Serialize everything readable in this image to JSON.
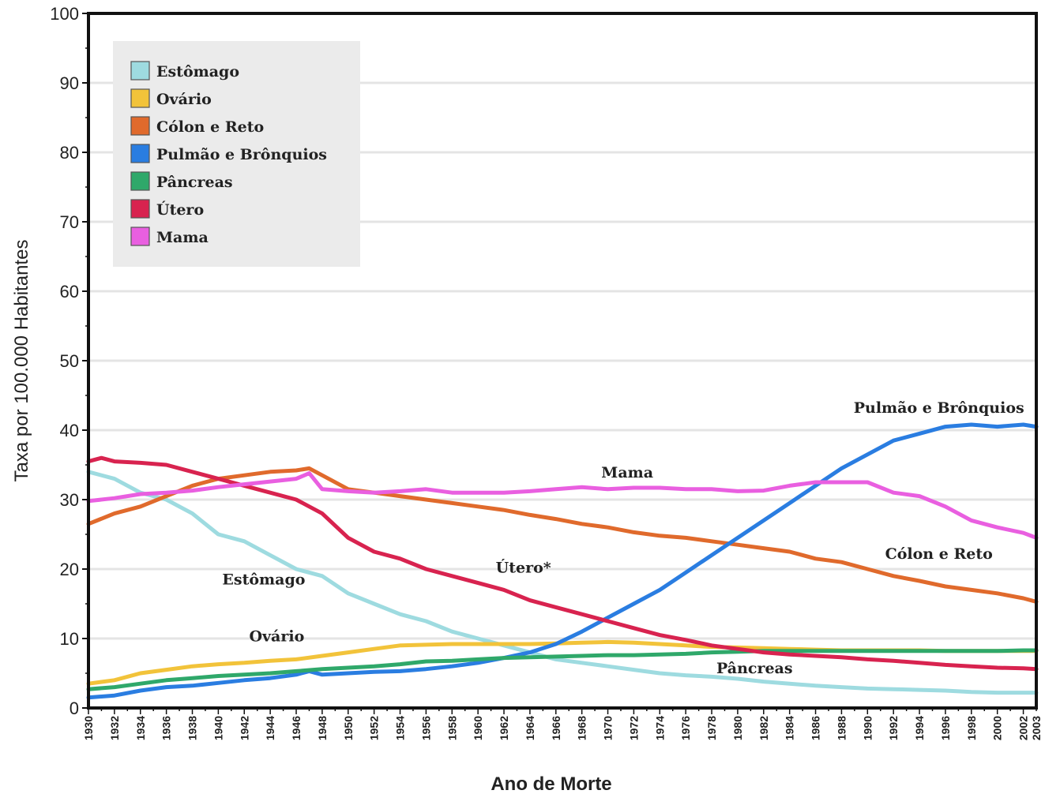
{
  "chart_data": {
    "type": "line",
    "title": "",
    "xlabel": "Ano de Morte",
    "ylabel": "Taxa por 100.000 Habitantes",
    "xlim": [
      1930,
      2003
    ],
    "ylim": [
      0,
      100
    ],
    "yticks": [
      0,
      10,
      20,
      30,
      40,
      50,
      60,
      70,
      80,
      90,
      100
    ],
    "xticks": [
      1930,
      1932,
      1934,
      1936,
      1938,
      1940,
      1942,
      1944,
      1946,
      1948,
      1950,
      1952,
      1954,
      1956,
      1958,
      1960,
      1962,
      1964,
      1966,
      1968,
      1970,
      1972,
      1974,
      1976,
      1978,
      1980,
      1982,
      1984,
      1986,
      1988,
      1990,
      1992,
      1994,
      1996,
      1998,
      2000,
      2002,
      2003
    ],
    "grid": "horizontal",
    "legend_position": "top-left",
    "series": [
      {
        "name": "Estômago",
        "color": "#9edbe0",
        "x": [
          1930,
          1932,
          1934,
          1936,
          1938,
          1940,
          1942,
          1944,
          1946,
          1948,
          1950,
          1952,
          1954,
          1956,
          1958,
          1960,
          1962,
          1964,
          1966,
          1968,
          1970,
          1972,
          1974,
          1976,
          1978,
          1980,
          1982,
          1984,
          1986,
          1988,
          1990,
          1992,
          1994,
          1996,
          1998,
          2000,
          2002,
          2003
        ],
        "y": [
          34,
          33,
          31,
          30,
          28,
          25,
          24,
          22,
          20,
          19,
          16.5,
          15,
          13.5,
          12.5,
          11,
          10,
          9,
          8,
          7,
          6.5,
          6,
          5.5,
          5,
          4.7,
          4.5,
          4.2,
          3.8,
          3.5,
          3.2,
          3,
          2.8,
          2.7,
          2.6,
          2.5,
          2.3,
          2.2,
          2.2,
          2.2
        ]
      },
      {
        "name": "Ovário",
        "color": "#f2c33a",
        "x": [
          1930,
          1932,
          1934,
          1936,
          1938,
          1940,
          1942,
          1944,
          1946,
          1948,
          1950,
          1952,
          1954,
          1956,
          1958,
          1960,
          1962,
          1964,
          1966,
          1968,
          1970,
          1972,
          1974,
          1976,
          1978,
          1980,
          1982,
          1984,
          1986,
          1988,
          1990,
          1992,
          1994,
          1996,
          1998,
          2000,
          2002,
          2003
        ],
        "y": [
          3.5,
          4,
          5,
          5.5,
          6,
          6.3,
          6.5,
          6.8,
          7,
          7.5,
          8,
          8.5,
          9,
          9.1,
          9.2,
          9.2,
          9.2,
          9.2,
          9.3,
          9.4,
          9.5,
          9.4,
          9.2,
          9,
          8.8,
          8.7,
          8.6,
          8.5,
          8.4,
          8.3,
          8.3,
          8.3,
          8.3,
          8.2,
          8.2,
          8.2,
          8.2,
          8.2
        ]
      },
      {
        "name": "Cólon e Reto",
        "color": "#e06a2c",
        "x": [
          1930,
          1932,
          1934,
          1936,
          1938,
          1940,
          1942,
          1944,
          1946,
          1947,
          1948,
          1950,
          1952,
          1954,
          1956,
          1958,
          1960,
          1962,
          1964,
          1966,
          1968,
          1970,
          1972,
          1974,
          1976,
          1978,
          1980,
          1982,
          1984,
          1986,
          1988,
          1990,
          1992,
          1994,
          1996,
          1998,
          2000,
          2002,
          2003
        ],
        "y": [
          26.5,
          28,
          29,
          30.5,
          32,
          33,
          33.5,
          34,
          34.2,
          34.5,
          33.5,
          31.5,
          31,
          30.5,
          30,
          29.5,
          29,
          28.5,
          27.8,
          27.2,
          26.5,
          26,
          25.3,
          24.8,
          24.5,
          24,
          23.5,
          23,
          22.5,
          21.5,
          21,
          20,
          19,
          18.3,
          17.5,
          17,
          16.5,
          15.8,
          15.3
        ]
      },
      {
        "name": "Pulmão e Brônquios",
        "color": "#2a7de1",
        "x": [
          1930,
          1932,
          1934,
          1936,
          1938,
          1940,
          1942,
          1944,
          1946,
          1947,
          1948,
          1950,
          1952,
          1954,
          1956,
          1958,
          1960,
          1962,
          1964,
          1966,
          1968,
          1970,
          1972,
          1974,
          1976,
          1978,
          1980,
          1982,
          1984,
          1986,
          1988,
          1990,
          1992,
          1994,
          1996,
          1998,
          2000,
          2002,
          2003
        ],
        "y": [
          1.5,
          1.8,
          2.5,
          3,
          3.2,
          3.6,
          4,
          4.3,
          4.8,
          5.3,
          4.8,
          5,
          5.2,
          5.3,
          5.6,
          6,
          6.5,
          7.2,
          8,
          9.2,
          11,
          13,
          15,
          17,
          19.5,
          22,
          24.5,
          27,
          29.5,
          32,
          34.5,
          36.5,
          38.5,
          39.5,
          40.5,
          40.8,
          40.5,
          40.8,
          40.5
        ]
      },
      {
        "name": "Pâncreas",
        "color": "#2fa86a",
        "x": [
          1930,
          1932,
          1934,
          1936,
          1938,
          1940,
          1942,
          1944,
          1946,
          1948,
          1950,
          1952,
          1954,
          1956,
          1958,
          1960,
          1962,
          1964,
          1966,
          1968,
          1970,
          1972,
          1974,
          1976,
          1978,
          1980,
          1982,
          1984,
          1986,
          1988,
          1990,
          1992,
          1994,
          1996,
          1998,
          2000,
          2002,
          2003
        ],
        "y": [
          2.7,
          3,
          3.5,
          4,
          4.3,
          4.6,
          4.8,
          5,
          5.3,
          5.6,
          5.8,
          6,
          6.3,
          6.7,
          6.8,
          7,
          7.2,
          7.3,
          7.4,
          7.5,
          7.6,
          7.6,
          7.7,
          7.8,
          8,
          8.1,
          8.2,
          8.2,
          8.2,
          8.2,
          8.2,
          8.2,
          8.2,
          8.2,
          8.2,
          8.2,
          8.3,
          8.3
        ]
      },
      {
        "name": "Útero",
        "color": "#d8234f",
        "x": [
          1930,
          1931,
          1932,
          1934,
          1936,
          1938,
          1940,
          1942,
          1944,
          1946,
          1948,
          1950,
          1952,
          1954,
          1956,
          1958,
          1960,
          1962,
          1964,
          1966,
          1968,
          1970,
          1972,
          1974,
          1976,
          1978,
          1980,
          1982,
          1984,
          1986,
          1988,
          1990,
          1992,
          1994,
          1996,
          1998,
          2000,
          2002,
          2003
        ],
        "y": [
          35.5,
          36,
          35.5,
          35.3,
          35,
          34,
          33,
          32,
          31,
          30,
          28,
          24.5,
          22.5,
          21.5,
          20,
          19,
          18,
          17,
          15.5,
          14.5,
          13.5,
          12.5,
          11.5,
          10.5,
          9.8,
          9,
          8.5,
          8,
          7.7,
          7.5,
          7.3,
          7,
          6.8,
          6.5,
          6.2,
          6,
          5.8,
          5.7,
          5.6
        ]
      },
      {
        "name": "Mama",
        "color": "#e95fe0",
        "x": [
          1930,
          1932,
          1934,
          1936,
          1938,
          1940,
          1942,
          1944,
          1946,
          1947,
          1948,
          1950,
          1952,
          1954,
          1956,
          1958,
          1960,
          1962,
          1964,
          1966,
          1968,
          1970,
          1972,
          1974,
          1976,
          1978,
          1980,
          1982,
          1984,
          1986,
          1988,
          1990,
          1992,
          1994,
          1996,
          1998,
          2000,
          2002,
          2003
        ],
        "y": [
          29.8,
          30.2,
          30.8,
          31,
          31.3,
          31.8,
          32.2,
          32.6,
          33,
          33.8,
          31.5,
          31.2,
          31,
          31.2,
          31.5,
          31,
          31,
          31,
          31.2,
          31.5,
          31.8,
          31.5,
          31.7,
          31.7,
          31.5,
          31.5,
          31.2,
          31.3,
          32,
          32.5,
          32.5,
          32.5,
          31,
          30.5,
          29,
          27,
          26,
          25.2,
          24.5
        ]
      }
    ],
    "annotations": [
      {
        "text": "Pulmão e Brônquios",
        "x": 1995.5,
        "y": 42.5
      },
      {
        "text": "Mama",
        "x": 1971.5,
        "y": 33.2
      },
      {
        "text": "Cólon e Reto",
        "x": 1995.5,
        "y": 21.5
      },
      {
        "text": "Útero*",
        "x": 1963.5,
        "y": 19.5
      },
      {
        "text": "Estômago",
        "x": 1943.5,
        "y": 17.8
      },
      {
        "text": "Ovário",
        "x": 1944.5,
        "y": 9.6
      },
      {
        "text": "Pâncreas",
        "x": 1981.3,
        "y": 5.0
      }
    ]
  }
}
